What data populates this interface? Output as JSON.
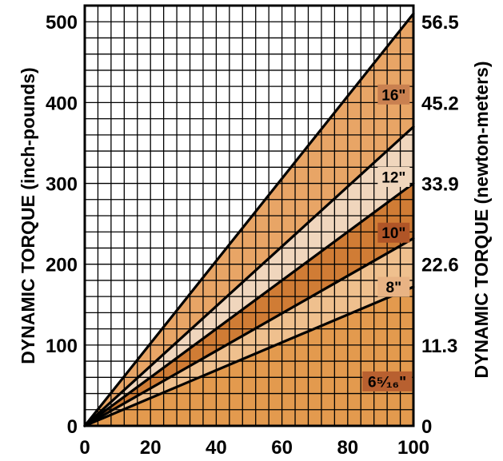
{
  "chart_data": {
    "type": "area",
    "x": [
      0,
      100
    ],
    "xlim": [
      0,
      100
    ],
    "ylim": [
      0,
      520
    ],
    "x_ticks": [
      "0",
      "20",
      "40",
      "60",
      "80",
      "100"
    ],
    "y_ticks_left": [
      "0",
      "100",
      "200",
      "300",
      "400",
      "500"
    ],
    "y_ticks_right": [
      "0",
      "11.3",
      "22.6",
      "33.9",
      "45.2",
      "56.5"
    ],
    "ylabel_left": "DYNAMIC TORQUE (inch-pounds)",
    "ylabel_right": "DYNAMIC TORQUE (newton-meters)",
    "grid": true,
    "series": [
      {
        "name": "6⁵⁄₁₆\"",
        "values": [
          0,
          172
        ],
        "color": "#e39a4e"
      },
      {
        "name": "8\"",
        "values": [
          0,
          232
        ],
        "color": "#efc08e"
      },
      {
        "name": "10\"",
        "values": [
          0,
          300
        ],
        "color": "#d07c35"
      },
      {
        "name": "12\"",
        "values": [
          0,
          370
        ],
        "color": "#f0d6bd"
      },
      {
        "name": "16\"",
        "values": [
          0,
          510
        ],
        "color": "#e8a566"
      }
    ],
    "label_box_colors": {
      "6⁵⁄₁₆\"": "#b86030",
      "8\"": "#e8b384",
      "10\"": "#b05527",
      "12\"": "#f0d6bd",
      "16\"": "#c98050"
    }
  }
}
